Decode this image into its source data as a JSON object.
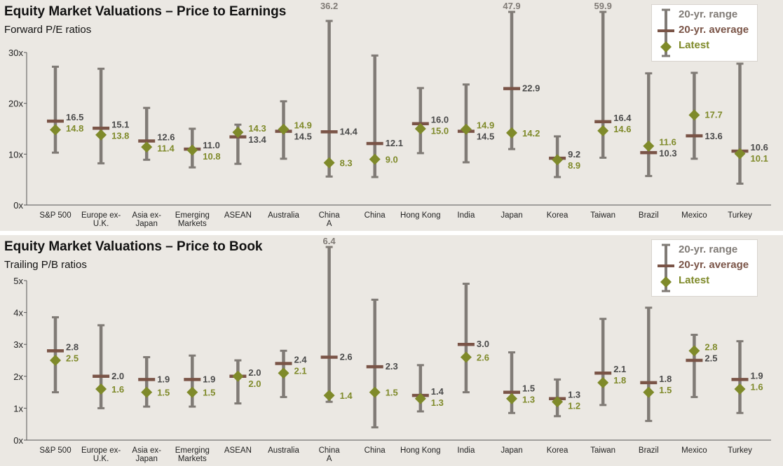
{
  "colors": {
    "range": "#807b76",
    "average": "#7a5447",
    "latest": "#7f8a2a",
    "label": "#444444",
    "background": "#ebe8e3"
  },
  "legend": {
    "range": "20-yr. range",
    "average": "20-yr. average",
    "latest": "Latest"
  },
  "chart_data": [
    {
      "type": "range",
      "title": "Equity Market Valuations – Price to Earnings",
      "subtitle": "Forward P/E ratios",
      "ylim": [
        0,
        30
      ],
      "yticks": [
        "0x",
        "10x",
        "20x",
        "30x"
      ],
      "categories": [
        "S&P 500",
        "Europe ex-U.K.",
        "Asia ex-Japan",
        "Emerging Markets",
        "ASEAN",
        "Australia",
        "China A",
        "China",
        "Hong Kong",
        "India",
        "Japan",
        "Korea",
        "Taiwan",
        "Brazil",
        "Mexico",
        "Turkey"
      ],
      "category_lines": [
        [
          "S&P 500"
        ],
        [
          "Europe ex-",
          "U.K."
        ],
        [
          "Asia ex-",
          "Japan"
        ],
        [
          "Emerging",
          "Markets"
        ],
        [
          "ASEAN"
        ],
        [
          "Australia"
        ],
        [
          "China",
          "A"
        ],
        [
          "China"
        ],
        [
          "Hong Kong"
        ],
        [
          "India"
        ],
        [
          "Japan"
        ],
        [
          "Korea"
        ],
        [
          "Taiwan"
        ],
        [
          "Brazil"
        ],
        [
          "Mexico"
        ],
        [
          "Turkey"
        ]
      ],
      "range_low": [
        10.3,
        8.2,
        8.9,
        7.4,
        8.1,
        9.1,
        5.6,
        5.5,
        10.2,
        8.4,
        11.0,
        5.5,
        9.3,
        5.7,
        9.1,
        4.2
      ],
      "range_high": [
        27.2,
        26.8,
        19.1,
        15.0,
        15.8,
        20.4,
        36.2,
        29.4,
        23.0,
        23.7,
        47.9,
        13.5,
        59.9,
        25.9,
        26.0,
        27.8
      ],
      "range_high_display": [
        null,
        null,
        null,
        null,
        null,
        null,
        "36.2",
        null,
        null,
        null,
        "47.9",
        null,
        "59.9",
        null,
        null,
        null
      ],
      "average": [
        16.5,
        15.1,
        12.6,
        11.0,
        13.4,
        14.5,
        14.4,
        12.1,
        16.0,
        14.5,
        22.9,
        9.2,
        16.4,
        10.3,
        13.6,
        10.6
      ],
      "average_labels": [
        "16.5",
        "15.1",
        "12.6",
        "11.0",
        "13.4",
        "14.5",
        "14.4",
        "12.1",
        "16.0",
        "14.5",
        "22.9",
        "9.2",
        "16.4",
        "10.3",
        "13.6",
        "10.6"
      ],
      "latest": [
        14.8,
        13.8,
        11.4,
        10.8,
        14.3,
        14.9,
        8.3,
        9.0,
        15.0,
        14.9,
        14.2,
        8.9,
        14.6,
        11.6,
        17.7,
        10.1
      ],
      "latest_labels": [
        "14.8",
        "13.8",
        "11.4",
        "10.8",
        "14.3",
        "14.9",
        "8.3",
        "9.0",
        "15.0",
        "14.9",
        "14.2",
        "8.9",
        "14.6",
        "11.6",
        "17.7",
        "10.1"
      ]
    },
    {
      "type": "range",
      "title": "Equity Market Valuations – Price to Book",
      "subtitle": "Trailing P/B ratios",
      "ylim": [
        0,
        5
      ],
      "yticks": [
        "0x",
        "1x",
        "2x",
        "3x",
        "4x",
        "5x"
      ],
      "categories": [
        "S&P 500",
        "Europe ex-U.K.",
        "Asia ex-Japan",
        "Emerging Markets",
        "ASEAN",
        "Australia",
        "China A",
        "China",
        "Hong Kong",
        "India",
        "Japan",
        "Korea",
        "Taiwan",
        "Brazil",
        "Mexico",
        "Turkey"
      ],
      "category_lines": [
        [
          "S&P 500"
        ],
        [
          "Europe ex-",
          "U.K."
        ],
        [
          "Asia ex-",
          "Japan"
        ],
        [
          "Emerging",
          "Markets"
        ],
        [
          "ASEAN"
        ],
        [
          "Australia"
        ],
        [
          "China",
          "A"
        ],
        [
          "China"
        ],
        [
          "Hong Kong"
        ],
        [
          "India"
        ],
        [
          "Japan"
        ],
        [
          "Korea"
        ],
        [
          "Taiwan"
        ],
        [
          "Brazil"
        ],
        [
          "Mexico"
        ],
        [
          "Turkey"
        ]
      ],
      "range_low": [
        1.5,
        1.0,
        1.05,
        1.05,
        1.15,
        1.35,
        1.2,
        0.4,
        0.9,
        1.5,
        0.85,
        0.75,
        1.1,
        0.6,
        1.35,
        0.85
      ],
      "range_high": [
        3.85,
        3.6,
        2.6,
        2.65,
        2.5,
        2.8,
        6.4,
        4.4,
        2.35,
        4.9,
        2.75,
        1.9,
        3.8,
        4.15,
        3.3,
        3.1
      ],
      "range_high_display": [
        null,
        null,
        null,
        null,
        null,
        null,
        "6.4",
        null,
        null,
        null,
        null,
        null,
        null,
        null,
        null,
        null
      ],
      "average": [
        2.8,
        2.0,
        1.9,
        1.9,
        2.0,
        2.4,
        2.6,
        2.3,
        1.4,
        3.0,
        1.5,
        1.3,
        2.1,
        1.8,
        2.5,
        1.9
      ],
      "average_labels": [
        "2.8",
        "2.0",
        "1.9",
        "1.9",
        "2.0",
        "2.4",
        "2.6",
        "2.3",
        "1.4",
        "3.0",
        "1.5",
        "1.3",
        "2.1",
        "1.8",
        "2.5",
        "1.9"
      ],
      "latest": [
        2.5,
        1.6,
        1.5,
        1.5,
        2.0,
        2.1,
        1.4,
        1.5,
        1.3,
        2.6,
        1.3,
        1.2,
        1.8,
        1.5,
        2.8,
        1.6
      ],
      "latest_labels": [
        "2.5",
        "1.6",
        "1.5",
        "1.5",
        "2.0",
        "2.1",
        "1.4",
        "1.5",
        "1.3",
        "2.6",
        "1.3",
        "1.2",
        "1.8",
        "1.5",
        "2.8",
        "1.6"
      ]
    }
  ]
}
